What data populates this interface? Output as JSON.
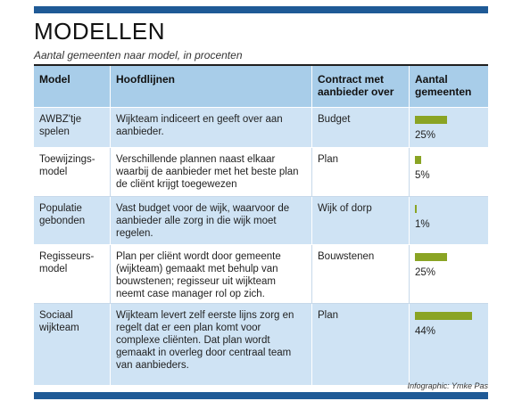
{
  "title": "MODELLEN",
  "subtitle": "Aantal gemeenten naar model, in procenten",
  "credit": "Infographic: Ymke Pas",
  "headers": {
    "model": "Model",
    "hoofdlijnen": "Hoofdlijnen",
    "contract": "Contract met aanbieder over",
    "aantal": "Aantal gemeenten"
  },
  "rows": [
    {
      "model": "AWBZ'tje spelen",
      "hoofdlijnen": "Wijkteam indiceert en geeft over aan aanbieder.",
      "contract": "Budget",
      "pct_label": "25%"
    },
    {
      "model": "Toewijzings-model",
      "hoofdlijnen": "Verschillende plannen naast elkaar waarbij de aanbieder met het beste plan de cliënt krijgt toegewezen",
      "contract": "Plan",
      "pct_label": "5%"
    },
    {
      "model": "Populatie gebonden",
      "hoofdlijnen": "Vast budget voor de wijk, waarvoor de aanbieder alle zorg in die wijk moet regelen.",
      "contract": "Wijk of dorp",
      "pct_label": "1%"
    },
    {
      "model": "Regisseurs-model",
      "hoofdlijnen": "Plan per cliënt wordt door gemeente (wijkteam) gemaakt met behulp van bouwstenen; regisseur uit wijkteam neemt case manager rol op zich.",
      "contract": "Bouwstenen",
      "pct_label": "25%"
    },
    {
      "model": "Sociaal wijkteam",
      "hoofdlijnen": "Wijkteam levert zelf eerste lijns zorg en regelt dat er een plan komt voor complexe cliënten. Dat plan wordt gemaakt in overleg door centraal team van aanbieders.",
      "contract": "Plan",
      "pct_label": "44%"
    }
  ],
  "colors": {
    "bar": "#8aa424",
    "header_bg": "#a8cde9",
    "alt_row_bg": "#cfe3f4",
    "rule": "#1f5a96"
  },
  "chart_data": {
    "type": "bar",
    "categories": [
      "AWBZ'tje spelen",
      "Toewijzings-model",
      "Populatie gebonden",
      "Regisseurs-model",
      "Sociaal wijkteam"
    ],
    "values": [
      25,
      5,
      1,
      25,
      44
    ],
    "title": "MODELLEN",
    "ylabel": "",
    "xlabel": "",
    "ylim": [
      0,
      60
    ]
  }
}
